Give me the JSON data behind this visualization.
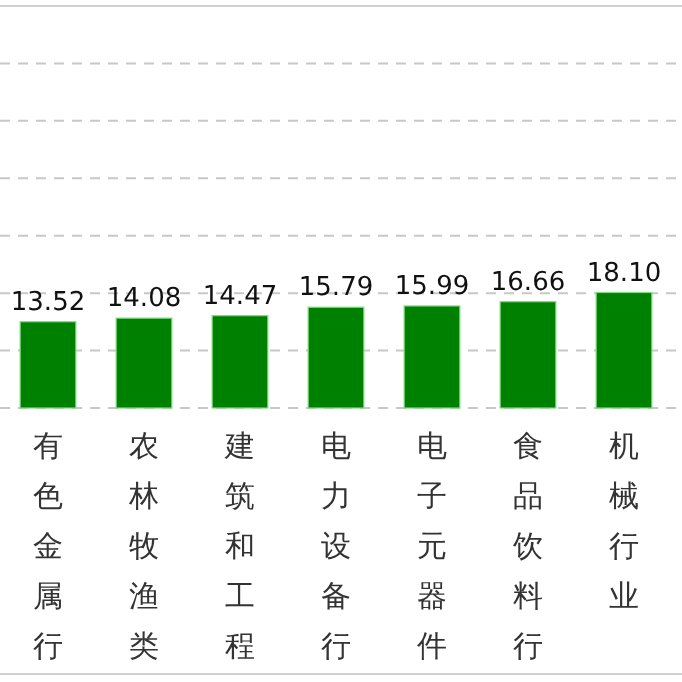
{
  "chart_data": {
    "type": "bar",
    "categories": [
      "有色金属行",
      "农林牧渔类",
      "建筑和工程",
      "电力设备行",
      "电子元器件",
      "食品饮料行",
      "机械行业"
    ],
    "values": [
      13.52,
      14.08,
      14.47,
      15.79,
      15.99,
      16.66,
      18.1
    ],
    "color": "#008000",
    "value_labels": [
      "13.52",
      "14.08",
      "14.47",
      "15.79",
      "15.99",
      "16.66",
      "18.10"
    ],
    "ylim": [
      0,
      63
    ],
    "yticks": [
      {
        "value": 0,
        "label": null
      },
      {
        "value": 9,
        "label": null
      },
      {
        "value": 18,
        "label": null
      },
      {
        "value": 27,
        "label": null
      },
      {
        "value": 36,
        "label": null
      },
      {
        "value": 45,
        "label": null
      },
      {
        "value": 54,
        "label": null
      }
    ],
    "grid": "y",
    "tick_labels": "x"
  }
}
